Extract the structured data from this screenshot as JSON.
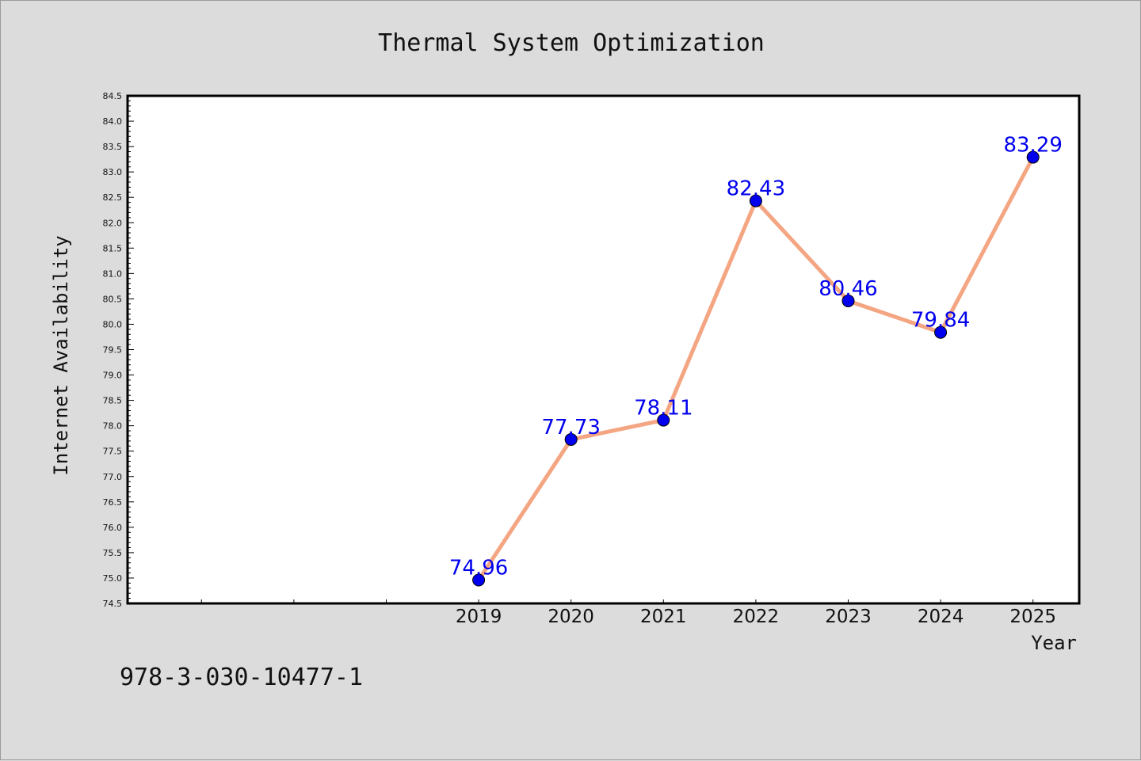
{
  "chart_data": {
    "type": "line",
    "title": "Thermal System Optimization",
    "xlabel": "Year",
    "ylabel": "Internet Availability",
    "x": [
      "2019",
      "2020",
      "2021",
      "2022",
      "2023",
      "2024",
      "2025"
    ],
    "x_positions": [
      2019,
      2020,
      2021,
      2022,
      2023,
      2024,
      2025
    ],
    "xlim": [
      2015.2,
      2025.5
    ],
    "ylim": [
      74.5,
      84.5
    ],
    "y_major_step": 0.5,
    "series": [
      {
        "values": [
          74.96,
          77.73,
          78.11,
          82.43,
          80.46,
          79.84,
          83.29
        ],
        "labels": [
          "74.96",
          "77.73",
          "78.11",
          "82.43",
          "80.46",
          "79.84",
          "83.29"
        ],
        "line_color": "#f4a582",
        "marker_color": "#0000ee",
        "label_color": "#0000ee"
      }
    ],
    "grid": false,
    "legend": "none"
  },
  "footer": {
    "isbn": "978-3-030-10477-1"
  },
  "colors": {
    "background": "#dcdcdc",
    "plot_background": "#ffffff",
    "axis": "#000000"
  }
}
